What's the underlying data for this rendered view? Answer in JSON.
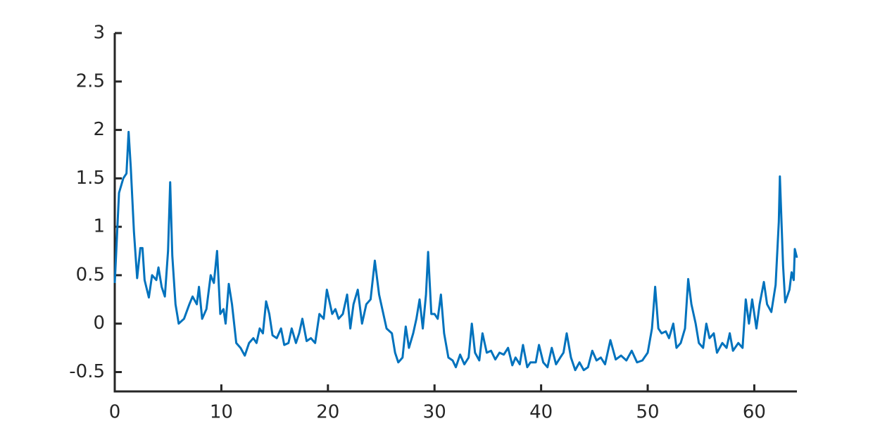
{
  "chart_data": {
    "type": "line",
    "x": [
      0,
      0.4,
      0.8,
      1.1,
      1.3,
      1.5,
      1.8,
      2.1,
      2.4,
      2.6,
      2.8,
      3.2,
      3.5,
      3.9,
      4.1,
      4.4,
      4.7,
      5.0,
      5.2,
      5.4,
      5.7,
      6.0,
      6.5,
      7.0,
      7.3,
      7.7,
      7.9,
      8.2,
      8.6,
      9.0,
      9.3,
      9.6,
      9.9,
      10.2,
      10.4,
      10.7,
      11.0,
      11.4,
      11.8,
      12.2,
      12.6,
      13.0,
      13.3,
      13.6,
      13.9,
      14.2,
      14.5,
      14.8,
      15.2,
      15.6,
      15.9,
      16.3,
      16.6,
      17.0,
      17.3,
      17.6,
      18.0,
      18.4,
      18.8,
      19.2,
      19.6,
      19.9,
      20.1,
      20.4,
      20.7,
      21.0,
      21.4,
      21.8,
      22.1,
      22.4,
      22.8,
      23.2,
      23.6,
      24.0,
      24.4,
      24.8,
      25.1,
      25.5,
      26.0,
      26.3,
      26.6,
      27.0,
      27.3,
      27.6,
      28.0,
      28.3,
      28.6,
      28.9,
      29.2,
      29.4,
      29.7,
      30.0,
      30.3,
      30.6,
      30.9,
      31.3,
      31.7,
      32.0,
      32.4,
      32.8,
      33.2,
      33.5,
      33.8,
      34.2,
      34.5,
      34.9,
      35.3,
      35.7,
      36.1,
      36.5,
      36.9,
      37.3,
      37.6,
      38.0,
      38.3,
      38.7,
      39.0,
      39.5,
      39.8,
      40.2,
      40.6,
      41.0,
      41.4,
      41.8,
      42.1,
      42.4,
      42.8,
      43.2,
      43.6,
      44.0,
      44.4,
      44.8,
      45.2,
      45.6,
      46.0,
      46.5,
      47.0,
      47.5,
      48.0,
      48.5,
      49.0,
      49.5,
      50.0,
      50.4,
      50.7,
      51.0,
      51.3,
      51.7,
      52.0,
      52.4,
      52.7,
      53.1,
      53.5,
      53.8,
      54.1,
      54.5,
      54.8,
      55.2,
      55.5,
      55.8,
      56.2,
      56.5,
      57.0,
      57.4,
      57.7,
      58.0,
      58.5,
      58.9,
      59.2,
      59.5,
      59.8,
      60.2,
      60.5,
      60.9,
      61.2,
      61.6,
      62.0,
      62.3,
      62.4,
      62.7,
      62.9,
      63.3,
      63.5,
      63.7,
      63.8,
      64.0
    ],
    "values": [
      0.42,
      1.35,
      1.5,
      1.55,
      1.98,
      1.62,
      0.95,
      0.47,
      0.78,
      0.78,
      0.45,
      0.27,
      0.5,
      0.45,
      0.58,
      0.38,
      0.28,
      0.75,
      1.46,
      0.7,
      0.2,
      0.0,
      0.05,
      0.2,
      0.28,
      0.2,
      0.38,
      0.05,
      0.15,
      0.5,
      0.42,
      0.75,
      0.1,
      0.15,
      0.0,
      0.41,
      0.2,
      -0.2,
      -0.25,
      -0.33,
      -0.2,
      -0.15,
      -0.2,
      -0.05,
      -0.1,
      0.23,
      0.1,
      -0.12,
      -0.15,
      -0.05,
      -0.22,
      -0.2,
      -0.05,
      -0.2,
      -0.1,
      0.05,
      -0.18,
      -0.15,
      -0.2,
      0.1,
      0.05,
      0.35,
      0.25,
      0.1,
      0.15,
      0.05,
      0.1,
      0.3,
      -0.05,
      0.2,
      0.35,
      0.0,
      0.2,
      0.25,
      0.65,
      0.3,
      0.15,
      -0.05,
      -0.1,
      -0.3,
      -0.4,
      -0.35,
      -0.03,
      -0.25,
      -0.1,
      0.05,
      0.25,
      -0.05,
      0.3,
      0.74,
      0.1,
      0.1,
      0.05,
      0.3,
      -0.1,
      -0.35,
      -0.38,
      -0.45,
      -0.32,
      -0.42,
      -0.35,
      0.0,
      -0.3,
      -0.38,
      -0.1,
      -0.3,
      -0.28,
      -0.37,
      -0.3,
      -0.32,
      -0.25,
      -0.43,
      -0.35,
      -0.42,
      -0.22,
      -0.45,
      -0.4,
      -0.4,
      -0.22,
      -0.4,
      -0.45,
      -0.25,
      -0.42,
      -0.35,
      -0.3,
      -0.1,
      -0.35,
      -0.48,
      -0.4,
      -0.48,
      -0.45,
      -0.28,
      -0.38,
      -0.35,
      -0.42,
      -0.17,
      -0.37,
      -0.33,
      -0.38,
      -0.28,
      -0.4,
      -0.38,
      -0.3,
      -0.05,
      0.38,
      -0.05,
      -0.1,
      -0.08,
      -0.15,
      0.0,
      -0.25,
      -0.2,
      -0.05,
      0.46,
      0.2,
      0.0,
      -0.2,
      -0.25,
      0.0,
      -0.15,
      -0.1,
      -0.3,
      -0.2,
      -0.25,
      -0.1,
      -0.28,
      -0.2,
      -0.25,
      0.25,
      0.0,
      0.25,
      -0.05,
      0.2,
      0.43,
      0.2,
      0.12,
      0.4,
      1.05,
      1.52,
      0.6,
      0.22,
      0.35,
      0.53,
      0.45,
      0.77,
      0.68
    ],
    "color": "#0072bd",
    "xlim": [
      0,
      64
    ],
    "xticks": [
      0,
      10,
      20,
      30,
      40,
      50,
      60
    ],
    "ylim": [
      -0.7,
      3
    ],
    "yticks": [
      -0.5,
      0,
      0.5,
      1,
      1.5,
      2,
      2.5,
      3
    ]
  }
}
